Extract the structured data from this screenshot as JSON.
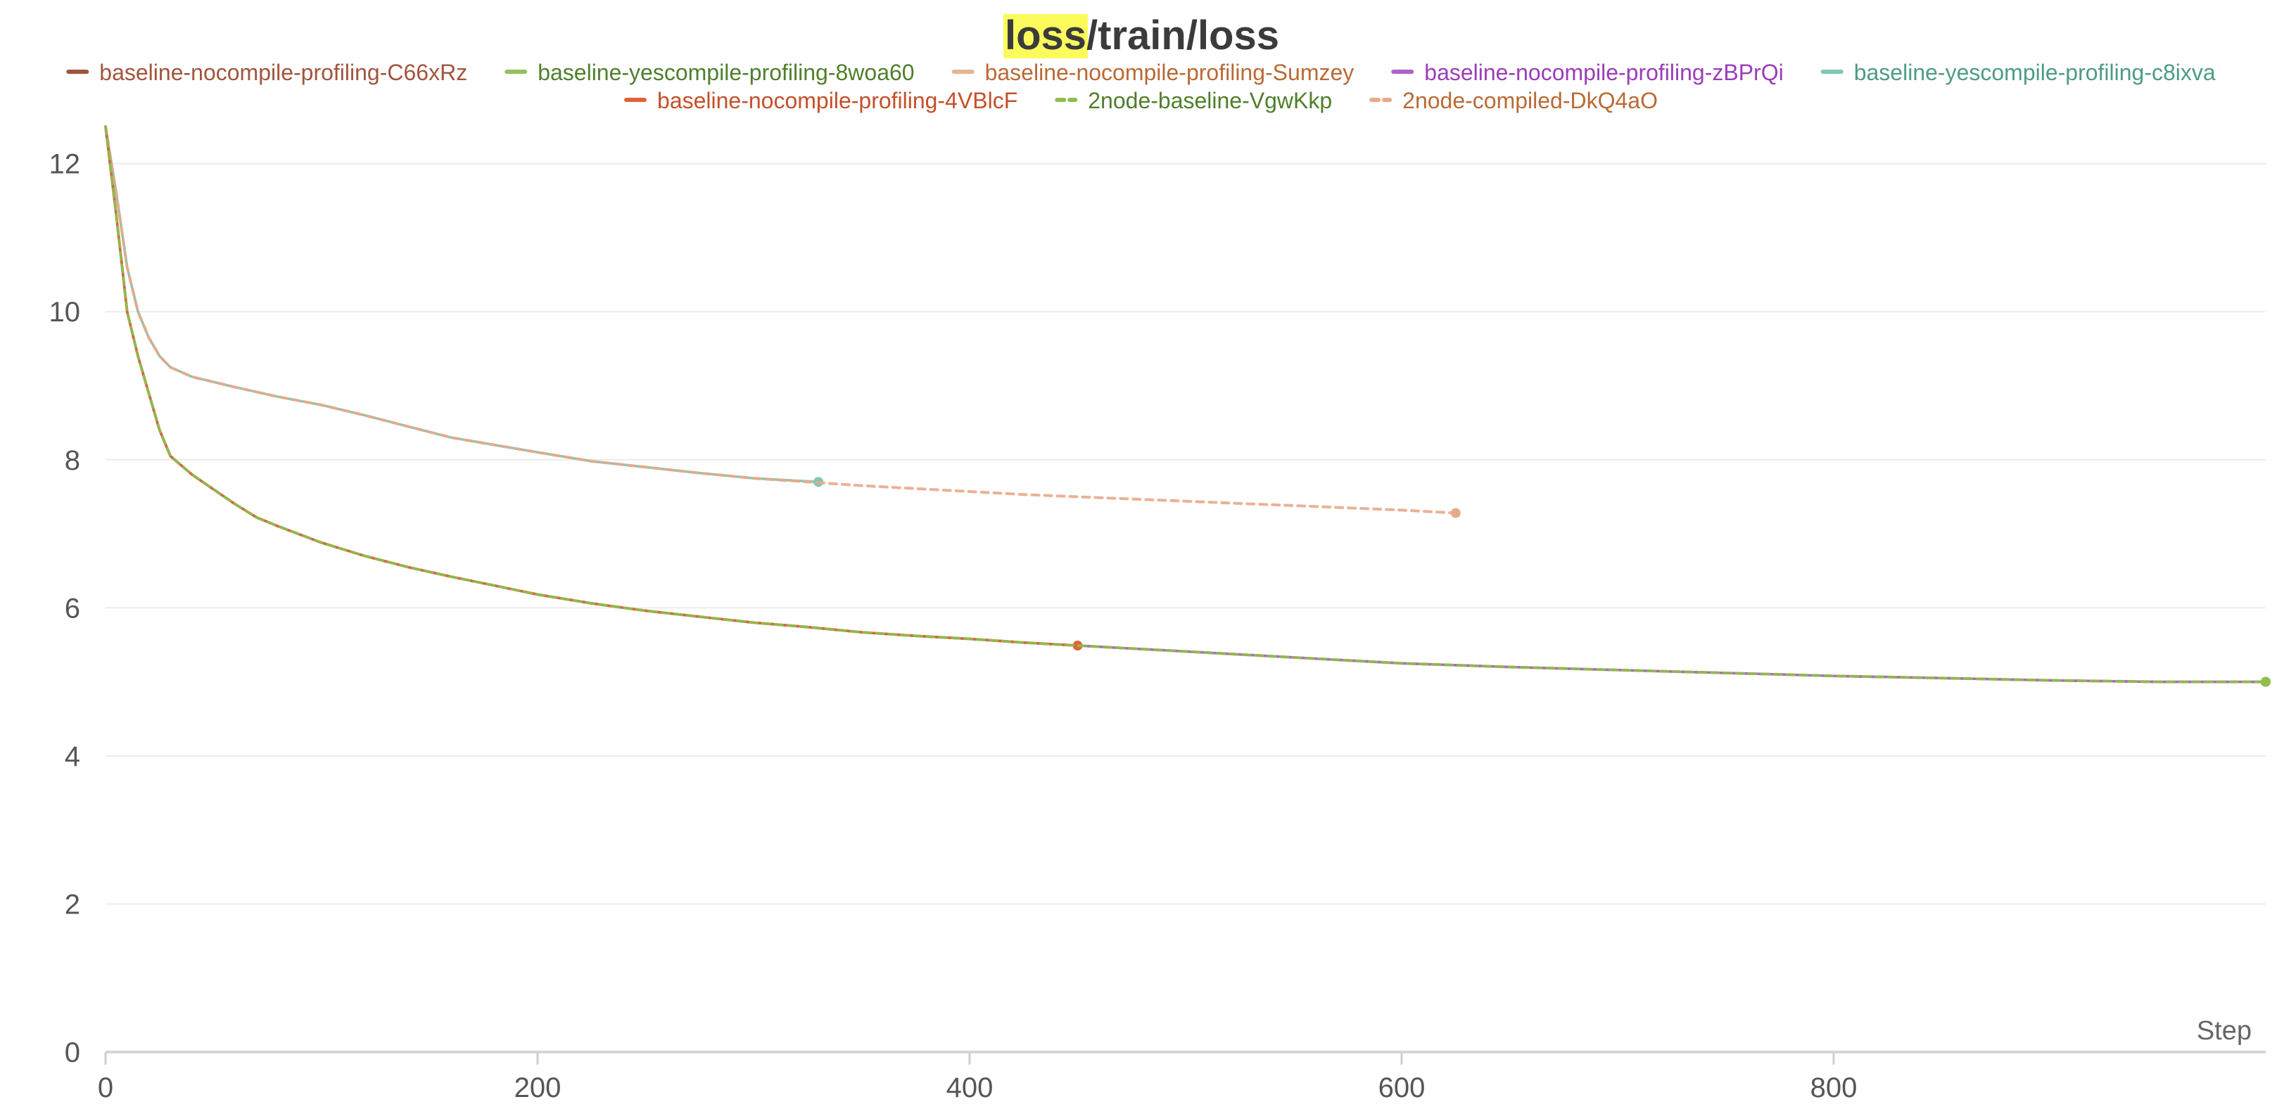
{
  "chart_data": {
    "type": "line",
    "title": {
      "highlight": "loss",
      "rest": "/train/loss",
      "highlight_color": "#fbfb5b"
    },
    "xlabel": "Step",
    "ylabel": "",
    "xlim": [
      0,
      1000
    ],
    "ylim": [
      0,
      12.5
    ],
    "x_ticks": [
      0,
      200,
      400,
      600,
      800
    ],
    "y_ticks": [
      0,
      2,
      4,
      6,
      8,
      10,
      12
    ],
    "grid": true,
    "legend_position": "top",
    "series": [
      {
        "name": "baseline-nocompile-profiling-C66xRz",
        "color": "#a0553d",
        "text_color": "#a0553d",
        "dashed": false,
        "x": [
          0,
          5,
          10,
          15,
          20,
          25,
          30,
          40,
          50,
          60,
          70,
          80,
          100,
          120,
          140,
          160,
          180,
          200,
          225,
          250,
          275,
          300,
          325,
          350,
          375,
          400,
          425,
          450,
          475,
          500,
          550,
          600,
          650,
          700,
          750,
          800,
          850,
          900,
          950,
          1000
        ],
        "y": [
          12.5,
          11.3,
          10.0,
          9.4,
          8.9,
          8.4,
          8.05,
          7.8,
          7.6,
          7.4,
          7.22,
          7.1,
          6.88,
          6.7,
          6.55,
          6.42,
          6.3,
          6.18,
          6.06,
          5.96,
          5.88,
          5.8,
          5.74,
          5.67,
          5.62,
          5.58,
          5.53,
          5.49,
          5.45,
          5.41,
          5.33,
          5.25,
          5.2,
          5.16,
          5.12,
          5.08,
          5.05,
          5.02,
          5.0,
          5.0
        ]
      },
      {
        "name": "baseline-yescompile-profiling-8woa60",
        "color": "#90c060",
        "text_color": "#4f7f2c",
        "dashed": false,
        "x": [
          0,
          5,
          10,
          15,
          20,
          25,
          30,
          40,
          50,
          60,
          70,
          80,
          100,
          120,
          140,
          160,
          180,
          200,
          225,
          250,
          275,
          300,
          325,
          350,
          375,
          400,
          425,
          450,
          475,
          500,
          550,
          600,
          650,
          700,
          750,
          800,
          850,
          900,
          950,
          1000
        ],
        "y": [
          12.5,
          11.3,
          10.0,
          9.4,
          8.9,
          8.4,
          8.05,
          7.8,
          7.6,
          7.4,
          7.22,
          7.1,
          6.88,
          6.7,
          6.55,
          6.42,
          6.3,
          6.18,
          6.06,
          5.96,
          5.88,
          5.8,
          5.74,
          5.67,
          5.62,
          5.58,
          5.53,
          5.49,
          5.45,
          5.41,
          5.33,
          5.25,
          5.2,
          5.16,
          5.12,
          5.08,
          5.05,
          5.02,
          5.0,
          5.0
        ]
      },
      {
        "name": "baseline-nocompile-profiling-Sumzey",
        "color": "#e8b594",
        "text_color": "#b96a36",
        "dashed": false,
        "x": [
          0,
          5,
          10,
          15,
          20,
          25,
          30,
          40,
          60,
          80,
          100,
          120,
          140,
          160,
          180,
          200,
          225,
          250,
          275,
          300,
          330
        ],
        "y": [
          12.5,
          11.6,
          10.6,
          10.0,
          9.65,
          9.4,
          9.25,
          9.12,
          8.98,
          8.85,
          8.74,
          8.6,
          8.45,
          8.3,
          8.2,
          8.1,
          7.98,
          7.9,
          7.82,
          7.75,
          7.7
        ]
      },
      {
        "name": "baseline-nocompile-profiling-zBPrQi",
        "color": "#b25fcc",
        "text_color": "#9b3db8",
        "dashed": false,
        "x": [
          0,
          5,
          10,
          15,
          20,
          25,
          30,
          40,
          50,
          60,
          70,
          80,
          100,
          120,
          140,
          160,
          180,
          200,
          225,
          250,
          275,
          300,
          325,
          350,
          375,
          400,
          425,
          450,
          475,
          500,
          550,
          600,
          650,
          700,
          750,
          800,
          850,
          900,
          950,
          1000
        ],
        "y": [
          12.5,
          11.3,
          10.0,
          9.4,
          8.9,
          8.4,
          8.05,
          7.8,
          7.6,
          7.4,
          7.22,
          7.1,
          6.88,
          6.7,
          6.55,
          6.42,
          6.3,
          6.18,
          6.06,
          5.96,
          5.88,
          5.8,
          5.74,
          5.67,
          5.62,
          5.58,
          5.53,
          5.49,
          5.45,
          5.41,
          5.33,
          5.25,
          5.2,
          5.16,
          5.12,
          5.08,
          5.05,
          5.02,
          5.0,
          5.0
        ]
      },
      {
        "name": "baseline-yescompile-profiling-c8ixva",
        "color": "#7cc9b4",
        "text_color": "#4e9b86",
        "dashed": false,
        "x": [
          0,
          5,
          10,
          15,
          20,
          25,
          30,
          40,
          60,
          80,
          100,
          120,
          140,
          160,
          180,
          200,
          225,
          250,
          275,
          300,
          330
        ],
        "y": [
          12.5,
          11.6,
          10.6,
          10.0,
          9.65,
          9.4,
          9.25,
          9.12,
          8.98,
          8.85,
          8.74,
          8.6,
          8.45,
          8.3,
          8.2,
          8.1,
          7.98,
          7.9,
          7.82,
          7.75,
          7.7
        ]
      },
      {
        "name": "baseline-nocompile-profiling-4VBlcF",
        "color": "#e0623a",
        "text_color": "#c4502a",
        "dashed": false,
        "x": [
          0,
          5,
          10,
          15,
          20,
          25,
          30,
          40,
          50,
          60,
          70,
          80,
          100,
          120,
          140,
          160,
          180,
          200,
          225,
          250,
          275,
          300,
          325,
          350,
          375,
          400,
          425,
          450
        ],
        "y": [
          12.5,
          11.3,
          10.0,
          9.4,
          8.9,
          8.4,
          8.05,
          7.8,
          7.6,
          7.4,
          7.22,
          7.1,
          6.88,
          6.7,
          6.55,
          6.42,
          6.3,
          6.18,
          6.06,
          5.96,
          5.88,
          5.8,
          5.74,
          5.67,
          5.62,
          5.58,
          5.53,
          5.49
        ]
      },
      {
        "name": "2node-baseline-VgwKkp",
        "color": "#8fbf4a",
        "text_color": "#4f7f2c",
        "dashed": true,
        "x": [
          0,
          5,
          10,
          15,
          20,
          25,
          30,
          40,
          50,
          60,
          70,
          80,
          100,
          120,
          140,
          160,
          180,
          200,
          225,
          250,
          275,
          300,
          325,
          350,
          375,
          400,
          425,
          450,
          475,
          500,
          550,
          600,
          650,
          700,
          750,
          800,
          850,
          900,
          950,
          1000
        ],
        "y": [
          12.5,
          11.3,
          10.0,
          9.4,
          8.9,
          8.4,
          8.05,
          7.8,
          7.6,
          7.4,
          7.22,
          7.1,
          6.88,
          6.7,
          6.55,
          6.42,
          6.3,
          6.18,
          6.06,
          5.96,
          5.88,
          5.8,
          5.74,
          5.67,
          5.62,
          5.58,
          5.53,
          5.49,
          5.45,
          5.41,
          5.33,
          5.25,
          5.2,
          5.16,
          5.12,
          5.08,
          5.05,
          5.02,
          5.0,
          5.0
        ]
      },
      {
        "name": "2node-compiled-DkQ4aO",
        "color": "#e8a98a",
        "text_color": "#b96a36",
        "dashed": true,
        "x": [
          0,
          5,
          10,
          15,
          20,
          25,
          30,
          40,
          60,
          80,
          100,
          120,
          140,
          160,
          180,
          200,
          225,
          250,
          275,
          300,
          325,
          350,
          375,
          400,
          425,
          450,
          475,
          500,
          525,
          550,
          575,
          600,
          625
        ],
        "y": [
          12.5,
          11.6,
          10.6,
          10.0,
          9.65,
          9.4,
          9.25,
          9.12,
          8.98,
          8.85,
          8.74,
          8.6,
          8.45,
          8.3,
          8.2,
          8.1,
          7.98,
          7.9,
          7.82,
          7.75,
          7.7,
          7.65,
          7.61,
          7.57,
          7.53,
          7.5,
          7.47,
          7.44,
          7.41,
          7.38,
          7.35,
          7.32,
          7.28
        ]
      }
    ]
  }
}
